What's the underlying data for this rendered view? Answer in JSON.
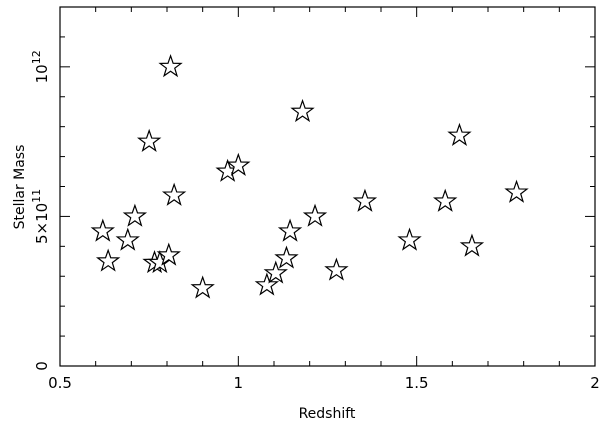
{
  "chart_data": {
    "type": "scatter",
    "marker": "open-star",
    "xlabel": "Redshift",
    "ylabel": "Stellar Mass",
    "xlim": [
      0.5,
      2.0
    ],
    "ylim": [
      0,
      1200000000000.0
    ],
    "grid": false,
    "x_ticks": [
      {
        "value": 0.5,
        "label": "0.5"
      },
      {
        "value": 1.0,
        "label": "1"
      },
      {
        "value": 1.5,
        "label": "1.5"
      },
      {
        "value": 2.0,
        "label": "2"
      }
    ],
    "y_ticks": [
      {
        "value": 0,
        "mantissa": "0",
        "exponent": ""
      },
      {
        "value": 500000000000.0,
        "mantissa": "5×10",
        "exponent": "11"
      },
      {
        "value": 1000000000000.0,
        "mantissa": "10",
        "exponent": "12"
      }
    ],
    "points": [
      {
        "x": 0.62,
        "y": 450000000000.0
      },
      {
        "x": 0.635,
        "y": 350000000000.0
      },
      {
        "x": 0.69,
        "y": 420000000000.0
      },
      {
        "x": 0.71,
        "y": 500000000000.0
      },
      {
        "x": 0.75,
        "y": 750000000000.0
      },
      {
        "x": 0.765,
        "y": 345000000000.0
      },
      {
        "x": 0.78,
        "y": 345000000000.0
      },
      {
        "x": 0.805,
        "y": 370000000000.0
      },
      {
        "x": 0.81,
        "y": 1000000000000.0
      },
      {
        "x": 0.82,
        "y": 570000000000.0
      },
      {
        "x": 0.9,
        "y": 260000000000.0
      },
      {
        "x": 0.97,
        "y": 650000000000.0
      },
      {
        "x": 1.0,
        "y": 670000000000.0
      },
      {
        "x": 1.08,
        "y": 270000000000.0
      },
      {
        "x": 1.105,
        "y": 310000000000.0
      },
      {
        "x": 1.135,
        "y": 360000000000.0
      },
      {
        "x": 1.145,
        "y": 450000000000.0
      },
      {
        "x": 1.18,
        "y": 850000000000.0
      },
      {
        "x": 1.215,
        "y": 500000000000.0
      },
      {
        "x": 1.275,
        "y": 320000000000.0
      },
      {
        "x": 1.355,
        "y": 550000000000.0
      },
      {
        "x": 1.48,
        "y": 420000000000.0
      },
      {
        "x": 1.58,
        "y": 550000000000.0
      },
      {
        "x": 1.62,
        "y": 770000000000.0
      },
      {
        "x": 1.655,
        "y": 400000000000.0
      },
      {
        "x": 1.78,
        "y": 580000000000.0
      }
    ]
  }
}
